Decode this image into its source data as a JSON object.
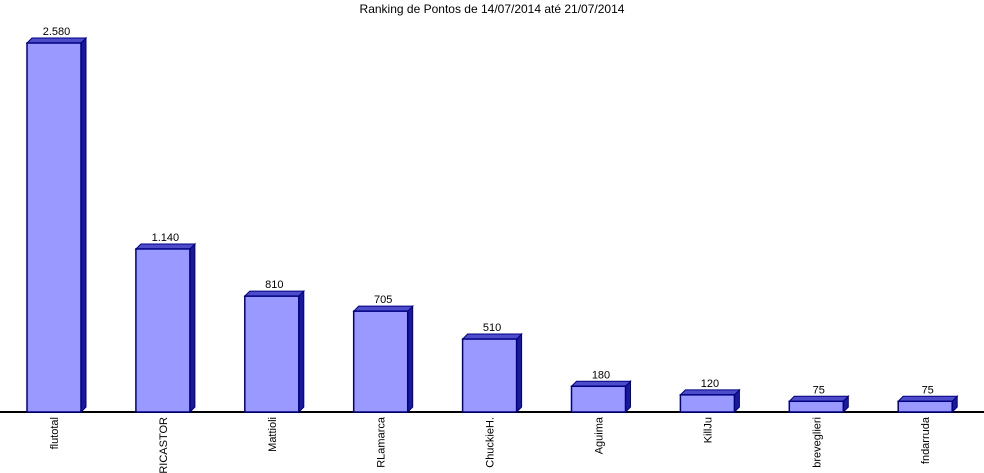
{
  "chart_data": {
    "type": "bar",
    "title": "Ranking de Pontos de 14/07/2014 até 21/07/2014",
    "xlabel": "",
    "ylabel": "",
    "categories": [
      "flutotal",
      "RICASTOR",
      "Mattioli",
      "RLamarca",
      "ChuckieH.",
      "Aguima",
      "KillJu",
      "breveglieri",
      "fndarruda"
    ],
    "values": [
      2580,
      1140,
      810,
      705,
      510,
      180,
      120,
      75,
      75
    ],
    "value_labels": [
      "2.580",
      "1.140",
      "810",
      "705",
      "510",
      "180",
      "120",
      "75",
      "75"
    ],
    "ylim": [
      0,
      2580
    ],
    "grid": false,
    "legend": "none",
    "colors": {
      "bar_front": "#9999ff",
      "bar_side": "#1a1a99",
      "bar_top": "#4d4dcc",
      "bar_outline": "#000080",
      "axis": "#000000"
    }
  }
}
